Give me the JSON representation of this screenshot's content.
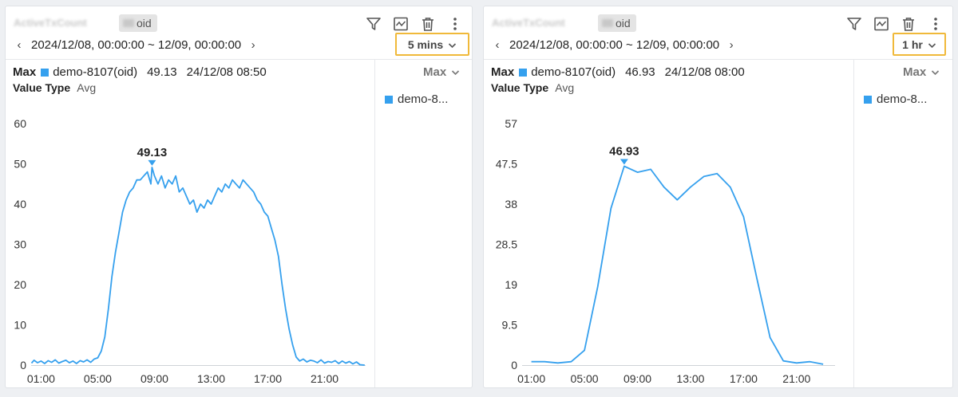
{
  "colors": {
    "series": "#35a0ee",
    "highlight": "#f0b93a",
    "panel_bg": "#ffffff",
    "page_bg": "#eef0f3"
  },
  "panels": [
    {
      "title": "ActiveTxCount",
      "oid_suffix": "oid",
      "toolbar_icons": [
        "filter-icon",
        "chart-type-icon",
        "delete-icon",
        "more-vertical-icon"
      ],
      "date_range": "2024/12/08, 00:00:00 ~ 12/09, 00:00:00",
      "interval": "5 mins",
      "max_label": "Max",
      "max_series": "demo-8107(oid)",
      "max_value": "49.13",
      "max_time": "24/12/08 08:50",
      "value_type_label": "Value Type",
      "value_type": "Avg",
      "legend_dropdown": "Max",
      "legend_items": [
        "demo-8..."
      ],
      "chart_data": {
        "type": "line",
        "x_ticks": [
          "01:00",
          "05:00",
          "09:00",
          "13:00",
          "17:00",
          "21:00"
        ],
        "y_ticks": [
          "0",
          "10",
          "20",
          "30",
          "40",
          "50",
          "60"
        ],
        "ylim": [
          0,
          60
        ],
        "xlim_hours": [
          0.3,
          23.9
        ],
        "peak_label": "49.13",
        "series": [
          {
            "name": "demo-8107(oid)",
            "x_hours": [
              0.33,
              0.5,
              0.75,
              1.0,
              1.25,
              1.5,
              1.75,
              2.0,
              2.25,
              2.5,
              2.75,
              3.0,
              3.25,
              3.5,
              3.75,
              4.0,
              4.25,
              4.5,
              4.75,
              5.0,
              5.25,
              5.5,
              5.75,
              6.0,
              6.25,
              6.5,
              6.75,
              7.0,
              7.25,
              7.5,
              7.75,
              8.0,
              8.25,
              8.5,
              8.75,
              8.83,
              9.0,
              9.25,
              9.5,
              9.75,
              10.0,
              10.25,
              10.5,
              10.75,
              11.0,
              11.25,
              11.5,
              11.75,
              12.0,
              12.25,
              12.5,
              12.75,
              13.0,
              13.25,
              13.5,
              13.75,
              14.0,
              14.25,
              14.5,
              14.75,
              15.0,
              15.25,
              15.5,
              15.75,
              16.0,
              16.25,
              16.5,
              16.75,
              17.0,
              17.25,
              17.5,
              17.75,
              18.0,
              18.25,
              18.5,
              18.75,
              19.0,
              19.25,
              19.5,
              19.75,
              20.0,
              20.25,
              20.5,
              20.75,
              21.0,
              21.25,
              21.5,
              21.75,
              22.0,
              22.25,
              22.5,
              22.75,
              23.0,
              23.25,
              23.5,
              23.83
            ],
            "values": [
              0.5,
              1.2,
              0.6,
              1.0,
              0.4,
              1.1,
              0.7,
              1.3,
              0.5,
              0.9,
              1.2,
              0.6,
              1.0,
              0.4,
              1.1,
              0.8,
              1.3,
              0.7,
              1.5,
              1.8,
              3.5,
              7,
              14,
              22,
              28,
              33,
              38,
              41,
              43,
              44,
              46,
              46,
              47,
              48,
              45,
              49.13,
              47,
              45,
              47,
              44,
              46,
              45,
              47,
              43,
              44,
              42,
              40,
              41,
              38,
              40,
              39,
              41,
              40,
              42,
              44,
              43,
              45,
              44,
              46,
              45,
              44,
              46,
              45,
              44,
              43,
              41,
              40,
              38,
              37,
              34,
              31,
              27,
              20,
              14,
              9,
              5,
              2,
              1,
              1.5,
              0.8,
              1.2,
              1.0,
              0.6,
              1.3,
              0.5,
              0.9,
              0.7,
              1.1,
              0.4,
              1.0,
              0.5,
              0.9,
              0.3,
              0.8,
              0.1,
              0
            ]
          }
        ]
      }
    },
    {
      "title": "ActiveTxCount",
      "oid_suffix": "oid",
      "toolbar_icons": [
        "filter-icon",
        "chart-type-icon",
        "delete-icon",
        "more-vertical-icon"
      ],
      "date_range": "2024/12/08, 00:00:00 ~ 12/09, 00:00:00",
      "interval": "1 hr",
      "max_label": "Max",
      "max_series": "demo-8107(oid)",
      "max_value": "46.93",
      "max_time": "24/12/08 08:00",
      "value_type_label": "Value Type",
      "value_type": "Avg",
      "legend_dropdown": "Max",
      "legend_items": [
        "demo-8..."
      ],
      "chart_data": {
        "type": "line",
        "x_ticks": [
          "01:00",
          "05:00",
          "09:00",
          "13:00",
          "17:00",
          "21:00"
        ],
        "y_ticks": [
          "0",
          "9.5",
          "19",
          "28.5",
          "38",
          "47.5",
          "57"
        ],
        "ylim": [
          0,
          57
        ],
        "xlim_hours": [
          0.3,
          23.9
        ],
        "peak_label": "46.93",
        "series": [
          {
            "name": "demo-8107(oid)",
            "x_hours": [
              1,
              2,
              3,
              4,
              5,
              6,
              7,
              8,
              9,
              10,
              11,
              12,
              13,
              14,
              15,
              16,
              17,
              18,
              19,
              20,
              21,
              22,
              23
            ],
            "values": [
              0.8,
              0.8,
              0.5,
              0.8,
              3.5,
              18.5,
              37,
              46.93,
              45.5,
              46.2,
              42,
              39,
              42,
              44.5,
              45.2,
              42,
              35,
              20.5,
              6.5,
              1,
              0.5,
              0.8,
              0.2
            ]
          }
        ]
      }
    }
  ]
}
